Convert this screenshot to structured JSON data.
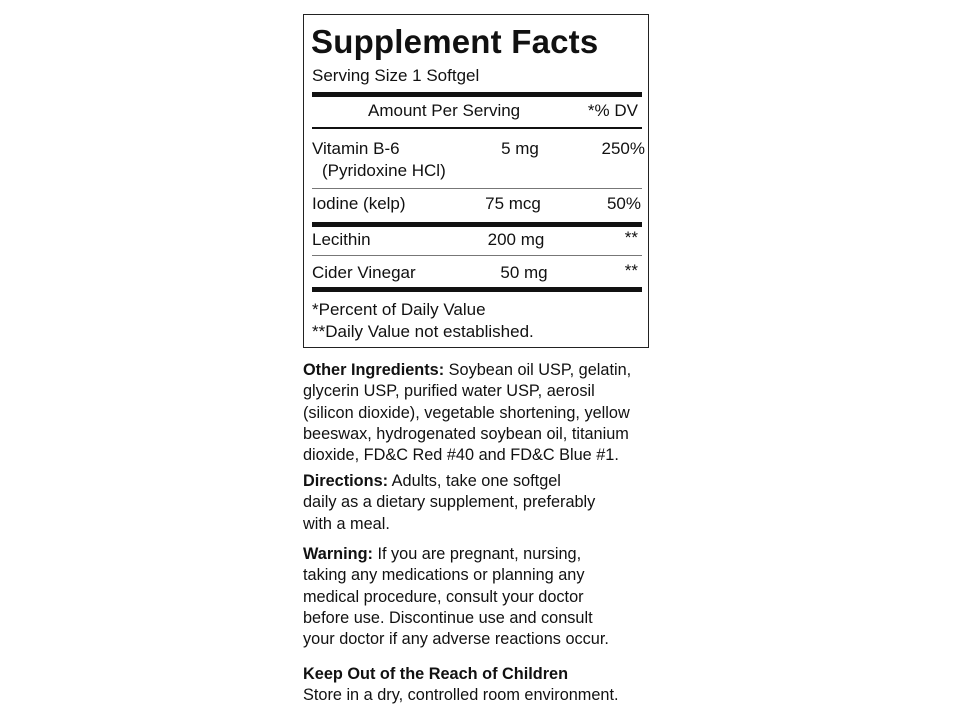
{
  "facts": {
    "title": "Supplement Facts",
    "serving_size": "Serving Size 1 Softgel",
    "header_amount": "Amount Per Serving",
    "header_dv": "*% DV",
    "rows": [
      {
        "name": "Vitamin B-6",
        "sub": "(Pyridoxine HCl)",
        "amount": "5 mg",
        "dv": "250%"
      },
      {
        "name": "Iodine (kelp)",
        "amount": "75 mcg",
        "dv": "50%"
      },
      {
        "name": "Lecithin",
        "amount": "200 mg",
        "dv": "**"
      },
      {
        "name": "Cider Vinegar",
        "amount": "50 mg",
        "dv": "**"
      }
    ],
    "footnote_1": "*Percent of Daily Value",
    "footnote_2": "**Daily Value not established."
  },
  "other_ingredients": {
    "label": "Other Ingredients:",
    "lines": [
      " Soybean oil USP, gelatin,",
      "glycerin USP, purified water USP, aerosil",
      "(silicon dioxide), vegetable shortening, yellow",
      "beeswax, hydrogenated soybean oil, titanium",
      "dioxide, FD&C Red #40 and FD&C Blue #1."
    ]
  },
  "directions": {
    "label": "Directions:",
    "lines": [
      " Adults, take one softgel",
      "daily as a dietary supplement, preferably",
      "with a meal."
    ]
  },
  "warning": {
    "label": "Warning:",
    "lines": [
      " If you are pregnant, nursing,",
      "taking any medications or planning any",
      "medical procedure, consult your doctor",
      "before use. Discontinue use and consult",
      "your doctor if any adverse reactions occur."
    ]
  },
  "storage": {
    "label": "Keep Out of the Reach of Children",
    "text": "Store in a dry, controlled room environment."
  }
}
